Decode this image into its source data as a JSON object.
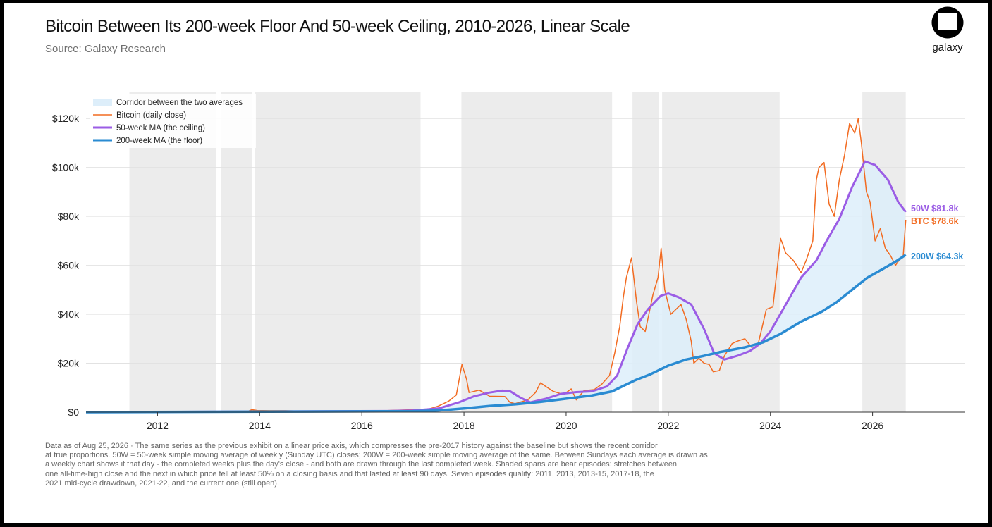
{
  "header": {
    "title": "Bitcoin Between Its 200-week Floor And 50-week Ceiling, 2010-2026, Linear Scale",
    "subtitle": "Source: Galaxy Research"
  },
  "logo": {
    "text": "galaxy",
    "icon": "galaxy-logo-icon"
  },
  "footnote": [
    "Data as of Aug 25, 2026 · The same series as the previous exhibit on a linear price axis, which compresses the pre-2017 history against the baseline but shows the recent corridor",
    "at true proportions. 50W = 50-week simple moving average of weekly (Sunday UTC) closes; 200W = 200-week simple moving average of the same. Between Sundays each average is drawn as",
    "a weekly chart shows it that day - the completed weeks plus the day's close - and both are drawn through the last completed week. Shaded spans are bear episodes: stretches between",
    "one all-time-high close and the next in which price fell at least 50% on a closing basis and that lasted at least 90 days. Seven episodes qualify: 2011, 2013, 2013-15, 2017-18, the",
    "2021 mid-cycle drawdown, 2021-22, and the current one (still open)."
  ],
  "chart_data": {
    "type": "line",
    "xlim": [
      2010.6,
      2027.8
    ],
    "ylim": [
      0,
      131000
    ],
    "x_ticks": [
      2012,
      2014,
      2016,
      2018,
      2020,
      2022,
      2024,
      2026
    ],
    "x_tick_labels": [
      "2012",
      "2014",
      "2016",
      "2018",
      "2020",
      "2022",
      "2024",
      "2026"
    ],
    "y_ticks": [
      0,
      20000,
      40000,
      60000,
      80000,
      100000,
      120000
    ],
    "y_tick_labels": [
      "$0",
      "$20k",
      "$40k",
      "$60k",
      "$80k",
      "$100k",
      "$120k"
    ],
    "grid": "horizontal",
    "legend_position": "top-left",
    "bear_episodes": [
      [
        2011.45,
        2013.15
      ],
      [
        2013.25,
        2013.85
      ],
      [
        2013.9,
        2017.15
      ],
      [
        2017.95,
        2020.9
      ],
      [
        2021.3,
        2021.82
      ],
      [
        2021.88,
        2024.18
      ],
      [
        2025.8,
        2026.65
      ]
    ],
    "colors": {
      "btc": "#f26b21",
      "ma50": "#9b5de5",
      "ma200": "#2a8bd2",
      "corridor": "#ddeefa",
      "bear": "#ececec"
    },
    "legend": [
      {
        "label": "Corridor between the two averages",
        "kind": "patch",
        "color": "#ddeefa"
      },
      {
        "label": "Bitcoin (daily close)",
        "kind": "line",
        "color": "#f26b21"
      },
      {
        "label": "50-week MA (the ceiling)",
        "kind": "line",
        "color": "#9b5de5"
      },
      {
        "label": "200-week MA (the floor)",
        "kind": "line",
        "color": "#2a8bd2"
      }
    ],
    "series": [
      {
        "name": "Bitcoin (daily close)",
        "points": [
          [
            2010.6,
            0
          ],
          [
            2013.0,
            20
          ],
          [
            2013.75,
            200
          ],
          [
            2013.85,
            1000
          ],
          [
            2013.95,
            700
          ],
          [
            2014.2,
            600
          ],
          [
            2014.5,
            600
          ],
          [
            2014.9,
            350
          ],
          [
            2015.5,
            250
          ],
          [
            2016.0,
            430
          ],
          [
            2016.5,
            650
          ],
          [
            2017.0,
            1000
          ],
          [
            2017.3,
            1200
          ],
          [
            2017.5,
            2500
          ],
          [
            2017.7,
            4500
          ],
          [
            2017.85,
            7000
          ],
          [
            2017.96,
            19500
          ],
          [
            2018.05,
            13500
          ],
          [
            2018.1,
            8000
          ],
          [
            2018.3,
            9000
          ],
          [
            2018.5,
            6500
          ],
          [
            2018.8,
            6400
          ],
          [
            2018.9,
            4000
          ],
          [
            2019.0,
            3500
          ],
          [
            2019.25,
            5000
          ],
          [
            2019.4,
            8000
          ],
          [
            2019.5,
            12000
          ],
          [
            2019.6,
            10500
          ],
          [
            2019.75,
            8500
          ],
          [
            2019.95,
            7200
          ],
          [
            2020.1,
            9500
          ],
          [
            2020.2,
            5000
          ],
          [
            2020.35,
            8800
          ],
          [
            2020.55,
            9200
          ],
          [
            2020.7,
            11500
          ],
          [
            2020.85,
            15000
          ],
          [
            2020.95,
            24000
          ],
          [
            2021.05,
            35000
          ],
          [
            2021.12,
            47000
          ],
          [
            2021.18,
            55000
          ],
          [
            2021.28,
            63000
          ],
          [
            2021.38,
            45000
          ],
          [
            2021.45,
            35000
          ],
          [
            2021.55,
            33000
          ],
          [
            2021.62,
            40000
          ],
          [
            2021.7,
            48000
          ],
          [
            2021.8,
            55000
          ],
          [
            2021.86,
            67000
          ],
          [
            2021.93,
            50000
          ],
          [
            2022.05,
            40000
          ],
          [
            2022.25,
            44000
          ],
          [
            2022.35,
            38000
          ],
          [
            2022.45,
            29000
          ],
          [
            2022.5,
            20000
          ],
          [
            2022.6,
            22000
          ],
          [
            2022.7,
            20000
          ],
          [
            2022.8,
            19500
          ],
          [
            2022.88,
            16500
          ],
          [
            2023.0,
            17000
          ],
          [
            2023.1,
            23000
          ],
          [
            2023.25,
            28000
          ],
          [
            2023.35,
            29000
          ],
          [
            2023.5,
            30000
          ],
          [
            2023.65,
            26000
          ],
          [
            2023.75,
            27000
          ],
          [
            2023.83,
            34000
          ],
          [
            2023.92,
            42000
          ],
          [
            2024.05,
            43000
          ],
          [
            2024.15,
            62000
          ],
          [
            2024.2,
            71000
          ],
          [
            2024.3,
            65000
          ],
          [
            2024.45,
            62000
          ],
          [
            2024.6,
            57000
          ],
          [
            2024.7,
            62000
          ],
          [
            2024.83,
            70000
          ],
          [
            2024.9,
            95000
          ],
          [
            2024.95,
            100000
          ],
          [
            2025.05,
            102000
          ],
          [
            2025.15,
            85000
          ],
          [
            2025.25,
            80000
          ],
          [
            2025.35,
            95000
          ],
          [
            2025.45,
            105000
          ],
          [
            2025.55,
            118000
          ],
          [
            2025.65,
            114000
          ],
          [
            2025.72,
            120000
          ],
          [
            2025.78,
            110000
          ],
          [
            2025.83,
            100000
          ],
          [
            2025.88,
            90000
          ],
          [
            2025.95,
            86000
          ],
          [
            2026.05,
            70000
          ],
          [
            2026.15,
            75000
          ],
          [
            2026.25,
            67000
          ],
          [
            2026.35,
            64000
          ],
          [
            2026.45,
            60000
          ],
          [
            2026.55,
            63000
          ],
          [
            2026.6,
            64000
          ],
          [
            2026.65,
            78600
          ]
        ]
      },
      {
        "name": "50-week MA (the ceiling)",
        "points": [
          [
            2010.6,
            0
          ],
          [
            2016.5,
            450
          ],
          [
            2017.0,
            700
          ],
          [
            2017.5,
            1500
          ],
          [
            2017.9,
            4000
          ],
          [
            2018.2,
            6500
          ],
          [
            2018.5,
            8000
          ],
          [
            2018.75,
            8800
          ],
          [
            2018.9,
            8600
          ],
          [
            2019.1,
            6000
          ],
          [
            2019.3,
            4000
          ],
          [
            2019.6,
            5500
          ],
          [
            2019.9,
            7500
          ],
          [
            2020.2,
            8200
          ],
          [
            2020.5,
            8500
          ],
          [
            2020.8,
            10500
          ],
          [
            2021.0,
            15000
          ],
          [
            2021.2,
            26000
          ],
          [
            2021.4,
            36000
          ],
          [
            2021.6,
            42000
          ],
          [
            2021.85,
            47500
          ],
          [
            2022.0,
            48500
          ],
          [
            2022.2,
            47000
          ],
          [
            2022.45,
            44000
          ],
          [
            2022.7,
            34000
          ],
          [
            2022.9,
            24000
          ],
          [
            2023.1,
            21500
          ],
          [
            2023.35,
            23000
          ],
          [
            2023.6,
            25000
          ],
          [
            2023.8,
            28000
          ],
          [
            2024.0,
            33000
          ],
          [
            2024.3,
            44000
          ],
          [
            2024.6,
            55000
          ],
          [
            2024.9,
            62000
          ],
          [
            2025.1,
            70000
          ],
          [
            2025.35,
            79000
          ],
          [
            2025.6,
            92000
          ],
          [
            2025.85,
            102500
          ],
          [
            2026.05,
            101000
          ],
          [
            2026.3,
            95000
          ],
          [
            2026.5,
            86000
          ],
          [
            2026.65,
            81800
          ]
        ]
      },
      {
        "name": "200-week MA (the floor)",
        "points": [
          [
            2010.6,
            0
          ],
          [
            2015.0,
            250
          ],
          [
            2017.0,
            400
          ],
          [
            2017.5,
            700
          ],
          [
            2018.0,
            1500
          ],
          [
            2018.5,
            2500
          ],
          [
            2019.0,
            3200
          ],
          [
            2019.5,
            4200
          ],
          [
            2020.0,
            5500
          ],
          [
            2020.5,
            6800
          ],
          [
            2020.9,
            8500
          ],
          [
            2021.1,
            10500
          ],
          [
            2021.35,
            13000
          ],
          [
            2021.65,
            15500
          ],
          [
            2022.0,
            19000
          ],
          [
            2022.35,
            21500
          ],
          [
            2022.7,
            23000
          ],
          [
            2023.0,
            24500
          ],
          [
            2023.5,
            26500
          ],
          [
            2023.85,
            28500
          ],
          [
            2024.2,
            32000
          ],
          [
            2024.6,
            37000
          ],
          [
            2025.0,
            41000
          ],
          [
            2025.3,
            45000
          ],
          [
            2025.6,
            50000
          ],
          [
            2025.9,
            55000
          ],
          [
            2026.2,
            58500
          ],
          [
            2026.45,
            61500
          ],
          [
            2026.65,
            64300
          ]
        ]
      }
    ],
    "end_labels": [
      {
        "text": "50W $81.8k",
        "value": 81800,
        "color": "#9b5de5"
      },
      {
        "text": "BTC $78.6k",
        "value": 78600,
        "color": "#f26b21"
      },
      {
        "text": "200W $64.3k",
        "value": 64300,
        "color": "#2a8bd2"
      }
    ]
  }
}
